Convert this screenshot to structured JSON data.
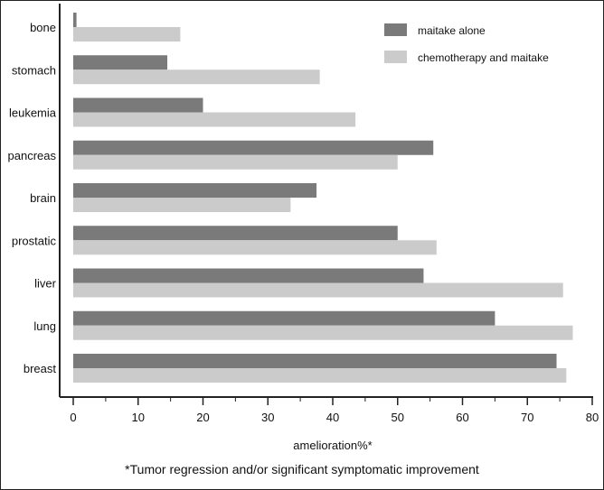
{
  "chart_data": {
    "type": "bar",
    "orientation": "horizontal",
    "categories": [
      "bone",
      "stomach",
      "leukemia",
      "pancreas",
      "brain",
      "prostatic",
      "liver",
      "lung",
      "breast"
    ],
    "series": [
      {
        "name": "maitake alone",
        "values": [
          0.5,
          14.5,
          20,
          55.5,
          37.5,
          50,
          54,
          65,
          74.5
        ],
        "color": "#7a7a7a"
      },
      {
        "name": "chemotherapy and maitake",
        "values": [
          16.5,
          38,
          43.5,
          50,
          33.5,
          56,
          75.5,
          77,
          76
        ],
        "color": "#cbcbcb"
      }
    ],
    "xlabel": "amelioration%*",
    "xlim": [
      0,
      80
    ],
    "xticks": [
      0,
      10,
      20,
      30,
      40,
      50,
      60,
      70,
      80
    ],
    "grid": false,
    "legend_position": "top-right"
  },
  "footnote": "*Tumor regression and/or significant symptomatic improvement"
}
